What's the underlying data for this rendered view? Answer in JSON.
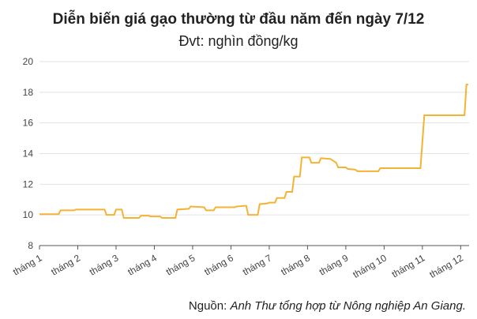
{
  "chart_data": {
    "type": "line",
    "title": "Diễn biến giá gạo thường từ đầu năm đến ngày 7/12",
    "subtitle": "Đvt: nghìn đồng/kg",
    "source_prefix": "Nguồn:",
    "source": "Anh Thư tổng hợp từ Nông nghiệp An Giang.",
    "color": "#f5b335",
    "grid": true,
    "xlim": [
      1,
      12.22
    ],
    "xticks": [
      {
        "value": 1,
        "label": "tháng 1"
      },
      {
        "value": 2,
        "label": "tháng 2"
      },
      {
        "value": 3,
        "label": "tháng 3"
      },
      {
        "value": 4,
        "label": "tháng 4"
      },
      {
        "value": 5,
        "label": "tháng 5"
      },
      {
        "value": 6,
        "label": "tháng 6"
      },
      {
        "value": 7,
        "label": "tháng 7"
      },
      {
        "value": 8,
        "label": "tháng 8"
      },
      {
        "value": 9,
        "label": "tháng 9"
      },
      {
        "value": 10,
        "label": "tháng 10"
      },
      {
        "value": 11,
        "label": "tháng 11"
      },
      {
        "value": 12,
        "label": "tháng 12"
      }
    ],
    "ylim": [
      8,
      20
    ],
    "yticks": [
      8,
      10,
      12,
      14,
      16,
      18,
      20
    ],
    "x": [
      1.0,
      1.5,
      1.55,
      1.9,
      1.95,
      2.7,
      2.75,
      2.95,
      3.0,
      3.15,
      3.2,
      3.6,
      3.65,
      3.85,
      3.9,
      4.15,
      4.2,
      4.55,
      4.6,
      4.9,
      4.95,
      5.3,
      5.35,
      5.55,
      5.6,
      6.1,
      6.15,
      6.4,
      6.45,
      6.7,
      6.75,
      6.95,
      7.0,
      7.15,
      7.2,
      7.4,
      7.45,
      7.6,
      7.65,
      7.8,
      7.85,
      8.05,
      8.1,
      8.3,
      8.35,
      8.6,
      8.75,
      8.8,
      9.0,
      9.05,
      9.25,
      9.3,
      9.85,
      9.9,
      10.05,
      10.95,
      11.05,
      12.1,
      12.15,
      12.2
    ],
    "values": [
      10.05,
      10.05,
      10.3,
      10.3,
      10.35,
      10.35,
      10.0,
      10.0,
      10.35,
      10.35,
      9.8,
      9.8,
      9.95,
      9.95,
      9.9,
      9.9,
      9.8,
      9.8,
      10.35,
      10.4,
      10.55,
      10.5,
      10.3,
      10.3,
      10.5,
      10.5,
      10.55,
      10.6,
      10.0,
      10.0,
      10.7,
      10.75,
      10.8,
      10.8,
      11.1,
      11.1,
      11.5,
      11.5,
      12.5,
      12.5,
      13.75,
      13.75,
      13.4,
      13.4,
      13.7,
      13.65,
      13.4,
      13.1,
      13.1,
      13.0,
      12.95,
      12.85,
      12.85,
      13.05,
      13.05,
      13.05,
      16.5,
      16.5,
      18.5,
      18.5
    ]
  }
}
